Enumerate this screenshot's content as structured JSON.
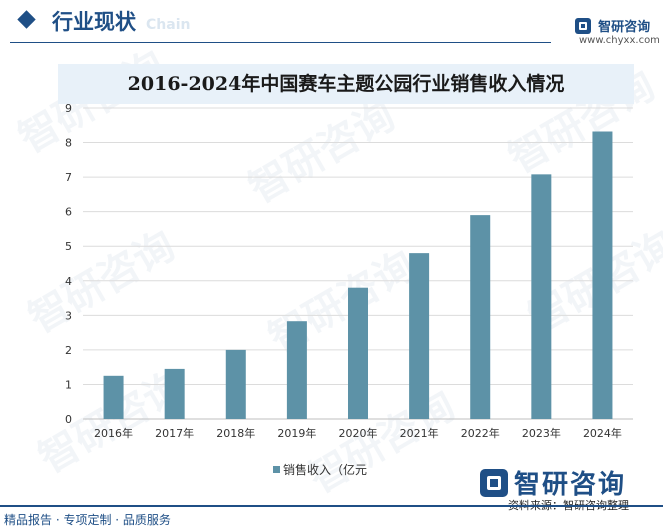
{
  "header": {
    "section_title": "行业现状",
    "section_subtitle": "Chain",
    "brand_name": "智研咨询",
    "brand_url": "www.chyxx.com"
  },
  "chart_data": {
    "type": "bar",
    "title": "2016-2024年中国赛车主题公园行业销售收入情况",
    "categories": [
      "2016年",
      "2017年",
      "2018年",
      "2019年",
      "2020年",
      "2021年",
      "2022年",
      "2023年",
      "2024年"
    ],
    "series": [
      {
        "name": "销售收入（亿元",
        "values": [
          1.25,
          1.45,
          2.0,
          2.83,
          3.8,
          4.8,
          5.9,
          7.08,
          8.32
        ]
      }
    ],
    "yticks": [
      "0",
      "1",
      "2",
      "3",
      "4",
      "5",
      "6",
      "7",
      "8",
      "9"
    ],
    "ylim": [
      0,
      9
    ],
    "grid": true,
    "bar_color": "#5d92a7",
    "legend_position": "bottom"
  },
  "legend": {
    "label": "销售收入（亿元"
  },
  "footer": {
    "source": "资料来源：智研咨询整理",
    "tagline": "精品报告 · 专项定制 · 品质服务",
    "watermark": "智研咨询"
  }
}
